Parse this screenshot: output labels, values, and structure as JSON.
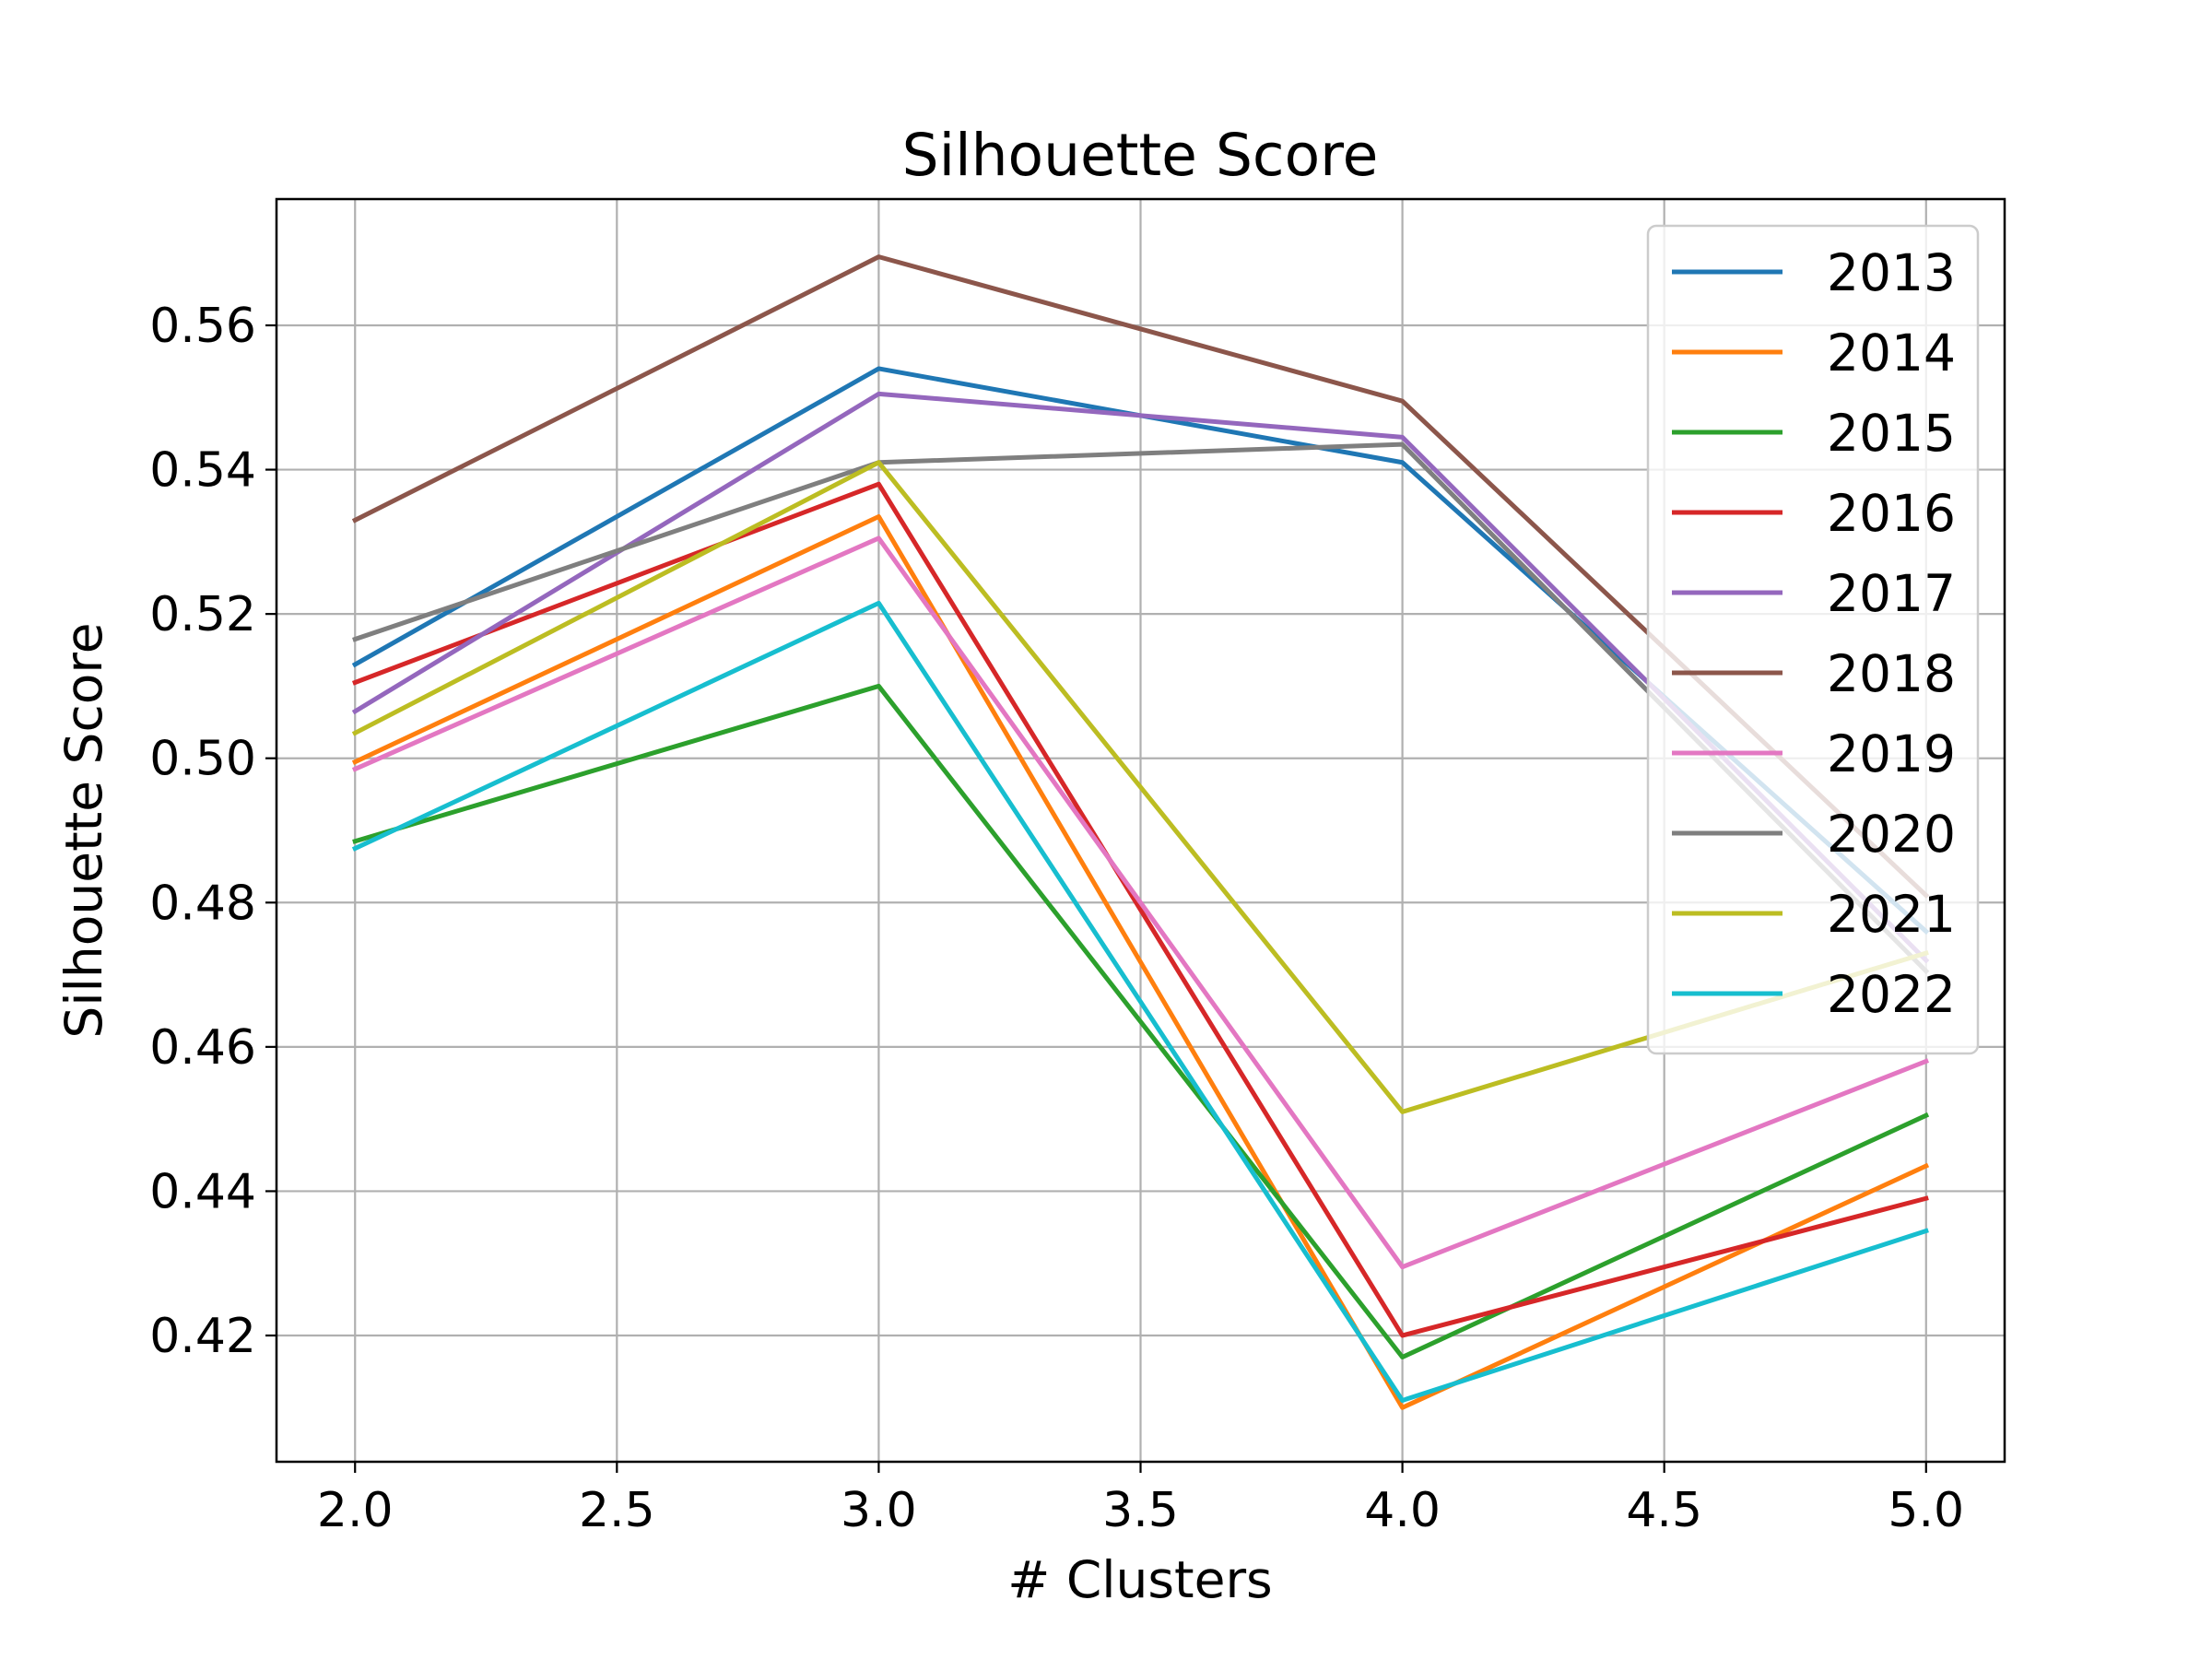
{
  "chart_data": {
    "type": "line",
    "title": "Silhouette Score",
    "xlabel": "# Clusters",
    "ylabel": "Silhouette Score",
    "x": [
      2,
      3,
      4,
      5
    ],
    "xlim": [
      1.85,
      5.15
    ],
    "ylim": [
      0.4025,
      0.5775
    ],
    "xticks": [
      2.0,
      2.5,
      3.0,
      3.5,
      4.0,
      4.5,
      5.0
    ],
    "xtick_labels": [
      "2.0",
      "2.5",
      "3.0",
      "3.5",
      "4.0",
      "4.5",
      "5.0"
    ],
    "yticks": [
      0.42,
      0.44,
      0.46,
      0.48,
      0.5,
      0.52,
      0.54,
      0.56
    ],
    "ytick_labels": [
      "0.42",
      "0.44",
      "0.46",
      "0.48",
      "0.50",
      "0.52",
      "0.54",
      "0.56"
    ],
    "grid": true,
    "legend_position": "top-right",
    "series": [
      {
        "name": "2013",
        "color": "#1f77b4",
        "values": [
          0.513,
          0.554,
          0.541,
          0.476
        ]
      },
      {
        "name": "2014",
        "color": "#ff7f0e",
        "values": [
          0.4995,
          0.5335,
          0.41,
          0.4435
        ]
      },
      {
        "name": "2015",
        "color": "#2ca02c",
        "values": [
          0.4885,
          0.51,
          0.417,
          0.4505
        ]
      },
      {
        "name": "2016",
        "color": "#d62728",
        "values": [
          0.5105,
          0.538,
          0.42,
          0.439
        ]
      },
      {
        "name": "2017",
        "color": "#9467bd",
        "values": [
          0.5065,
          0.5505,
          0.5445,
          0.472
        ]
      },
      {
        "name": "2018",
        "color": "#8c564b",
        "values": [
          0.533,
          0.5695,
          0.5495,
          0.481
        ]
      },
      {
        "name": "2019",
        "color": "#e377c2",
        "values": [
          0.4985,
          0.5305,
          0.4295,
          0.458
        ]
      },
      {
        "name": "2020",
        "color": "#7f7f7f",
        "values": [
          0.5165,
          0.541,
          0.5435,
          0.4705
        ]
      },
      {
        "name": "2021",
        "color": "#bcbd22",
        "values": [
          0.5035,
          0.541,
          0.451,
          0.473
        ]
      },
      {
        "name": "2022",
        "color": "#17becf",
        "values": [
          0.4875,
          0.5215,
          0.411,
          0.4345
        ]
      }
    ]
  }
}
